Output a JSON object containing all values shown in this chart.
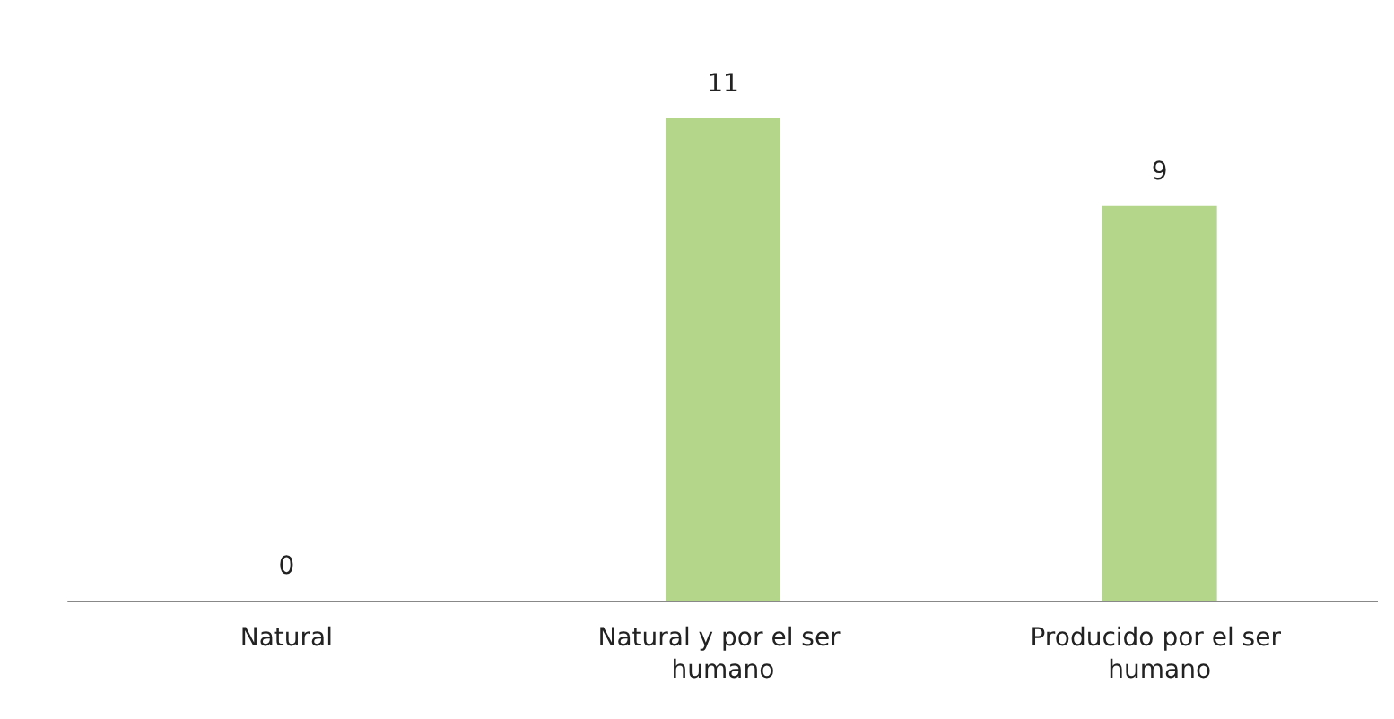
{
  "chart_data": {
    "type": "bar",
    "categories": [
      "Natural",
      "Natural y por el ser humano",
      "Producido por el ser humano"
    ],
    "values": [
      0,
      11,
      9
    ],
    "color": "#b3d68a",
    "data_labels": true
  }
}
